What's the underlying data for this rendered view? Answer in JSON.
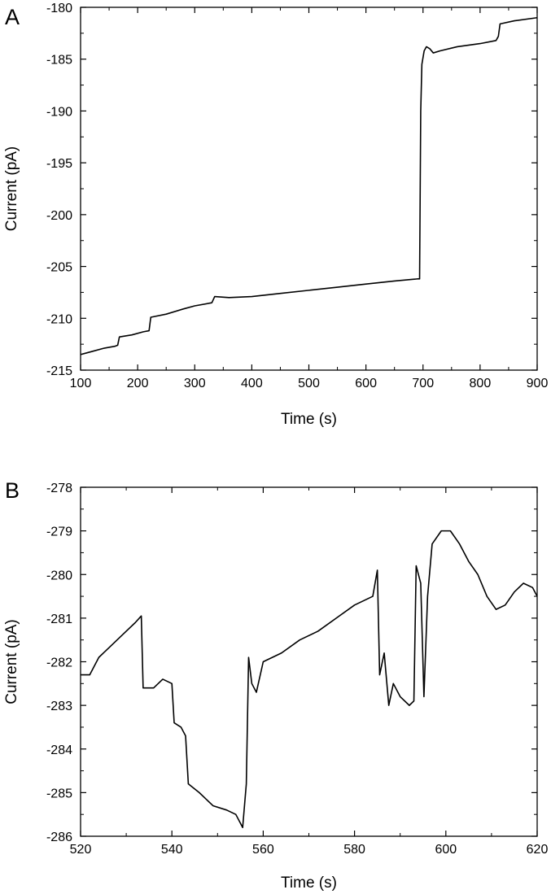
{
  "chart_data": [
    {
      "panel_label": "A",
      "type": "line",
      "xlabel": "Time (s)",
      "ylabel": "Current (pA)",
      "xlim": [
        100,
        900
      ],
      "ylim": [
        -215,
        -180
      ],
      "xticks": [
        100,
        200,
        300,
        400,
        500,
        600,
        700,
        800,
        900
      ],
      "yticks": [
        -215,
        -210,
        -205,
        -200,
        -195,
        -190,
        -185,
        -180
      ],
      "grid": false,
      "legend": "none",
      "line_color": "#000000",
      "series": [
        {
          "points": [
            [
              100,
              -213.5
            ],
            [
              120,
              -213.2
            ],
            [
              140,
              -212.9
            ],
            [
              160,
              -212.7
            ],
            [
              165,
              -212.6
            ],
            [
              168,
              -211.8
            ],
            [
              190,
              -211.6
            ],
            [
              210,
              -211.3
            ],
            [
              220,
              -211.2
            ],
            [
              223,
              -209.9
            ],
            [
              250,
              -209.6
            ],
            [
              280,
              -209.1
            ],
            [
              300,
              -208.8
            ],
            [
              330,
              -208.5
            ],
            [
              335,
              -207.9
            ],
            [
              360,
              -208.0
            ],
            [
              400,
              -207.9
            ],
            [
              450,
              -207.6
            ],
            [
              500,
              -207.3
            ],
            [
              550,
              -207.0
            ],
            [
              600,
              -206.7
            ],
            [
              650,
              -206.4
            ],
            [
              690,
              -206.2
            ],
            [
              694,
              -206.2
            ],
            [
              696,
              -190.0
            ],
            [
              698,
              -185.5
            ],
            [
              702,
              -184.2
            ],
            [
              706,
              -183.8
            ],
            [
              712,
              -184.0
            ],
            [
              718,
              -184.4
            ],
            [
              730,
              -184.2
            ],
            [
              760,
              -183.8
            ],
            [
              800,
              -183.5
            ],
            [
              828,
              -183.2
            ],
            [
              832,
              -182.8
            ],
            [
              835,
              -181.6
            ],
            [
              860,
              -181.3
            ],
            [
              900,
              -181.0
            ]
          ]
        }
      ]
    },
    {
      "panel_label": "B",
      "type": "line",
      "xlabel": "Time (s)",
      "ylabel": "Current (pA)",
      "xlim": [
        520,
        620
      ],
      "ylim": [
        -286,
        -278
      ],
      "xticks": [
        520,
        540,
        560,
        580,
        600,
        620
      ],
      "yticks": [
        -286,
        -285,
        -284,
        -283,
        -282,
        -281,
        -280,
        -279,
        -278
      ],
      "grid": false,
      "legend": "none",
      "line_color": "#000000",
      "series": [
        {
          "points": [
            [
              520,
              -282.3
            ],
            [
              522,
              -282.3
            ],
            [
              524,
              -281.9
            ],
            [
              526,
              -281.7
            ],
            [
              528,
              -281.5
            ],
            [
              530,
              -281.3
            ],
            [
              532,
              -281.1
            ],
            [
              533.3,
              -280.95
            ],
            [
              533.7,
              -282.6
            ],
            [
              536,
              -282.6
            ],
            [
              538,
              -282.4
            ],
            [
              540,
              -282.5
            ],
            [
              540.5,
              -283.4
            ],
            [
              542,
              -283.5
            ],
            [
              543,
              -283.7
            ],
            [
              543.6,
              -284.8
            ],
            [
              546,
              -285.0
            ],
            [
              549,
              -285.3
            ],
            [
              552,
              -285.4
            ],
            [
              554,
              -285.5
            ],
            [
              555.5,
              -285.8
            ],
            [
              556.3,
              -284.8
            ],
            [
              556.8,
              -281.9
            ],
            [
              557.5,
              -282.5
            ],
            [
              558.5,
              -282.7
            ],
            [
              560,
              -282.0
            ],
            [
              564,
              -281.8
            ],
            [
              568,
              -281.5
            ],
            [
              572,
              -281.3
            ],
            [
              576,
              -281.0
            ],
            [
              580,
              -280.7
            ],
            [
              584,
              -280.5
            ],
            [
              585,
              -279.9
            ],
            [
              585.5,
              -282.3
            ],
            [
              586.5,
              -281.8
            ],
            [
              587.5,
              -283.0
            ],
            [
              588.5,
              -282.5
            ],
            [
              590,
              -282.8
            ],
            [
              592,
              -283.0
            ],
            [
              593,
              -282.9
            ],
            [
              593.5,
              -279.8
            ],
            [
              594.5,
              -280.2
            ],
            [
              595.2,
              -282.8
            ],
            [
              596,
              -280.5
            ],
            [
              597,
              -279.3
            ],
            [
              599,
              -279.0
            ],
            [
              601,
              -279.0
            ],
            [
              603,
              -279.3
            ],
            [
              605,
              -279.7
            ],
            [
              607,
              -280.0
            ],
            [
              609,
              -280.5
            ],
            [
              611,
              -280.8
            ],
            [
              613,
              -280.7
            ],
            [
              615,
              -280.4
            ],
            [
              617,
              -280.2
            ],
            [
              619,
              -280.3
            ],
            [
              620,
              -280.5
            ]
          ]
        }
      ]
    }
  ]
}
